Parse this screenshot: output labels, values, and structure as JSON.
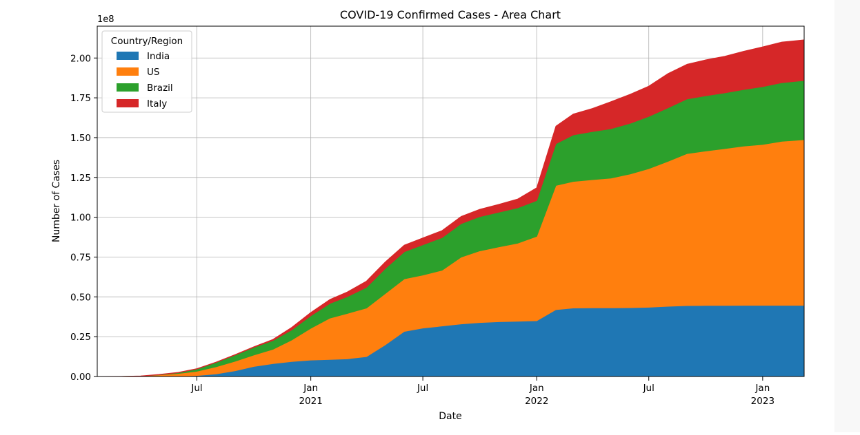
{
  "chart_data": {
    "type": "area",
    "stacked": true,
    "title": "COVID-19 Confirmed Cases - Area Chart",
    "xlabel": "Date",
    "ylabel": "Number of Cases",
    "y_offset_label": "1e8",
    "ylim": [
      0,
      2.2
    ],
    "xlim": [
      "2020-01-22",
      "2023-03-09"
    ],
    "y_ticks": [
      0.0,
      0.25,
      0.5,
      0.75,
      1.0,
      1.25,
      1.5,
      1.75,
      2.0
    ],
    "y_tick_labels": [
      "0.00",
      "0.25",
      "0.50",
      "0.75",
      "1.00",
      "1.25",
      "1.50",
      "1.75",
      "2.00"
    ],
    "x_ticks": [
      {
        "date": "2020-07-01",
        "label": "Jul",
        "year": ""
      },
      {
        "date": "2021-01-01",
        "label": "Jan",
        "year": "2021"
      },
      {
        "date": "2021-07-01",
        "label": "Jul",
        "year": ""
      },
      {
        "date": "2022-01-01",
        "label": "Jan",
        "year": "2022"
      },
      {
        "date": "2022-07-01",
        "label": "Jul",
        "year": ""
      },
      {
        "date": "2023-01-01",
        "label": "Jan",
        "year": "2023"
      }
    ],
    "grid": true,
    "legend": {
      "title": "Country/Region",
      "position": "top-left"
    },
    "x": [
      "2020-01-22",
      "2020-03-01",
      "2020-04-01",
      "2020-05-01",
      "2020-06-01",
      "2020-07-01",
      "2020-08-01",
      "2020-09-01",
      "2020-10-01",
      "2020-11-01",
      "2020-12-01",
      "2021-01-01",
      "2021-02-01",
      "2021-03-01",
      "2021-04-01",
      "2021-05-01",
      "2021-06-01",
      "2021-07-01",
      "2021-08-01",
      "2021-09-01",
      "2021-10-01",
      "2021-11-01",
      "2021-12-01",
      "2022-01-01",
      "2022-02-01",
      "2022-03-01",
      "2022-04-01",
      "2022-05-01",
      "2022-06-01",
      "2022-07-01",
      "2022-08-01",
      "2022-09-01",
      "2022-10-01",
      "2022-11-01",
      "2022-12-01",
      "2023-01-01",
      "2023-02-01",
      "2023-03-09"
    ],
    "series": [
      {
        "name": "India",
        "color": "#1f77b4",
        "values": [
          0.0,
          0.0,
          0.0,
          0.0,
          0.002,
          0.006,
          0.016,
          0.036,
          0.063,
          0.081,
          0.094,
          0.103,
          0.107,
          0.111,
          0.125,
          0.198,
          0.283,
          0.304,
          0.317,
          0.33,
          0.339,
          0.344,
          0.347,
          0.35,
          0.42,
          0.43,
          0.431,
          0.431,
          0.432,
          0.435,
          0.441,
          0.445,
          0.446,
          0.446,
          0.447,
          0.447,
          0.447,
          0.447
        ]
      },
      {
        "name": "US",
        "color": "#ff7f0e",
        "values": [
          0.0,
          0.0002,
          0.002,
          0.01,
          0.017,
          0.027,
          0.045,
          0.06,
          0.072,
          0.09,
          0.135,
          0.2,
          0.26,
          0.285,
          0.305,
          0.322,
          0.33,
          0.333,
          0.35,
          0.42,
          0.45,
          0.47,
          0.49,
          0.53,
          0.78,
          0.795,
          0.805,
          0.815,
          0.84,
          0.87,
          0.91,
          0.955,
          0.97,
          0.985,
          1.0,
          1.01,
          1.03,
          1.04
        ]
      },
      {
        "name": "Brazil",
        "color": "#2ca02c",
        "values": [
          0.0,
          0.0,
          0.0001,
          0.001,
          0.005,
          0.014,
          0.027,
          0.039,
          0.048,
          0.055,
          0.063,
          0.078,
          0.092,
          0.105,
          0.13,
          0.157,
          0.17,
          0.19,
          0.205,
          0.21,
          0.215,
          0.218,
          0.222,
          0.225,
          0.262,
          0.292,
          0.302,
          0.31,
          0.318,
          0.328,
          0.336,
          0.343,
          0.347,
          0.35,
          0.355,
          0.363,
          0.368,
          0.372
        ]
      },
      {
        "name": "Italy",
        "color": "#d62728",
        "values": [
          0.0,
          0.0001,
          0.001,
          0.002,
          0.002,
          0.002,
          0.0025,
          0.003,
          0.0035,
          0.007,
          0.016,
          0.021,
          0.025,
          0.03,
          0.039,
          0.041,
          0.042,
          0.043,
          0.044,
          0.045,
          0.046,
          0.049,
          0.055,
          0.08,
          0.11,
          0.131,
          0.145,
          0.17,
          0.182,
          0.19,
          0.215,
          0.218,
          0.225,
          0.23,
          0.24,
          0.25,
          0.255,
          0.255
        ]
      }
    ]
  }
}
